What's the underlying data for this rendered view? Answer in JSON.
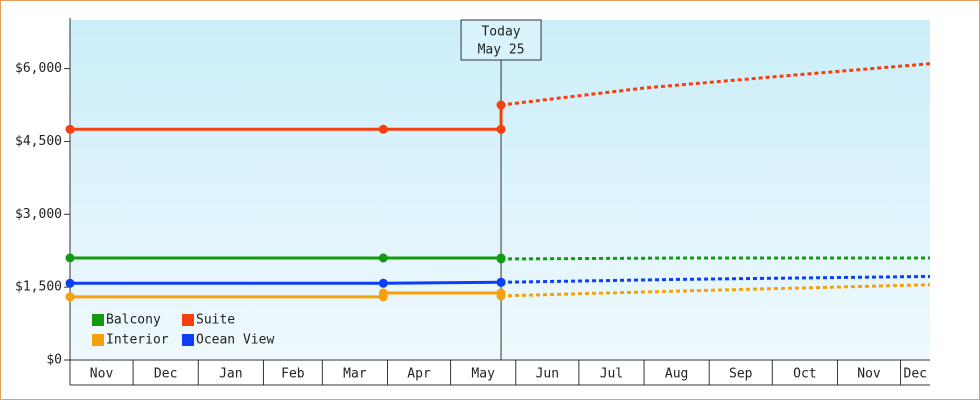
{
  "chart_data": {
    "type": "line",
    "xlim": [
      0,
      409
    ],
    "ylim": [
      0,
      7000
    ],
    "xticks": [
      {
        "value": 0,
        "label": "Nov"
      },
      {
        "value": 30,
        "label": "Dec"
      },
      {
        "value": 61,
        "label": "Jan"
      },
      {
        "value": 92,
        "label": "Feb"
      },
      {
        "value": 120,
        "label": "Mar"
      },
      {
        "value": 151,
        "label": "Apr"
      },
      {
        "value": 181,
        "label": "May"
      },
      {
        "value": 212,
        "label": "Jun"
      },
      {
        "value": 242,
        "label": "Jul"
      },
      {
        "value": 273,
        "label": "Aug"
      },
      {
        "value": 304,
        "label": "Sep"
      },
      {
        "value": 334,
        "label": "Oct"
      },
      {
        "value": 365,
        "label": "Nov"
      },
      {
        "value": 395,
        "label": "Dec"
      }
    ],
    "yticks": [
      {
        "value": 0,
        "label": "$0"
      },
      {
        "value": 1500,
        "label": "$1,500"
      },
      {
        "value": 3000,
        "label": "$3,000"
      },
      {
        "value": 4500,
        "label": "$4,500"
      },
      {
        "value": 6000,
        "label": "$6,000"
      }
    ],
    "annotation": {
      "x": 205,
      "lines": [
        "Today",
        "May 25"
      ]
    },
    "legend": "lower-left",
    "series": [
      {
        "name": "Balcony",
        "color": "#129a12",
        "x": [
          0,
          149,
          205
        ],
        "values": [
          2100,
          2100,
          2100
        ],
        "forecast_x": [
          205,
          290,
          409
        ],
        "forecast_values": [
          2080,
          2100,
          2100
        ]
      },
      {
        "name": "Suite",
        "color": "#f53f0c",
        "x": [
          0,
          149,
          205
        ],
        "values": [
          4750,
          4750,
          4750
        ],
        "forecast_x": [
          205,
          273,
          340,
          409
        ],
        "forecast_values": [
          5250,
          5600,
          5850,
          6100
        ]
      },
      {
        "name": "Interior",
        "color": "#f5a10c",
        "x": [
          0,
          149,
          149,
          205
        ],
        "values": [
          1300,
          1300,
          1380,
          1380
        ],
        "forecast_x": [
          205,
          290,
          409
        ],
        "forecast_values": [
          1320,
          1420,
          1550
        ]
      },
      {
        "name": "Ocean View",
        "color": "#0c3ff5",
        "x": [
          0,
          149,
          205
        ],
        "values": [
          1580,
          1580,
          1600
        ],
        "forecast_x": [
          205,
          290,
          409
        ],
        "forecast_values": [
          1600,
          1660,
          1720
        ]
      }
    ]
  }
}
